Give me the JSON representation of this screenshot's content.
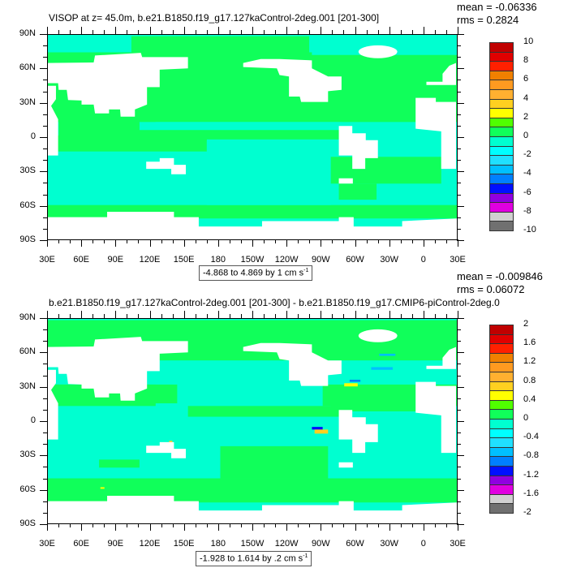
{
  "chart_data": [
    {
      "type": "heatmap",
      "title": "VISOP at z=  45.0m, b.e21.B1850.f19_g17.127kaControl-2deg.001 [201-300]",
      "mean_label": "mean = -0.06336",
      "rms_label": "rms = 0.2824",
      "lat_ticks": [
        "90N",
        "60N",
        "30N",
        "0",
        "30S",
        "60S",
        "90S"
      ],
      "lon_ticks": [
        "30E",
        "60E",
        "90E",
        "120E",
        "150E",
        "180",
        "150W",
        "120W",
        "90W",
        "60W",
        "30W",
        "0",
        "30E"
      ],
      "colorbar_labels": [
        "10",
        "8",
        "6",
        "4",
        "2",
        "0",
        "-2",
        "-4",
        "-6",
        "-8",
        "-10"
      ],
      "contour_info": "-4.868 to 4.869 by 1 cm s",
      "contour_unit_exp": "-1",
      "range": [
        -10,
        10
      ]
    },
    {
      "type": "heatmap",
      "title": "b.e21.B1850.f19_g17.127kaControl-2deg.001 [201-300] - b.e21.B1850.f19_g17.CMIP6-piControl-2deg.0",
      "mean_label": "mean = -0.009846",
      "rms_label": "rms = 0.06072",
      "lat_ticks": [
        "90N",
        "60N",
        "30N",
        "0",
        "30S",
        "60S",
        "90S"
      ],
      "lon_ticks": [
        "30E",
        "60E",
        "90E",
        "120E",
        "150E",
        "180",
        "150W",
        "120W",
        "90W",
        "60W",
        "30W",
        "0",
        "30E"
      ],
      "colorbar_labels": [
        "2",
        "1.6",
        "1.2",
        "0.8",
        "0.4",
        "0",
        "-0.4",
        "-0.8",
        "-1.2",
        "-1.6",
        "-2"
      ],
      "contour_info": "-1.928 to 1.614 by .2 cm s",
      "contour_unit_exp": "-1",
      "range": [
        -2,
        2
      ]
    }
  ],
  "colors": {
    "palette": [
      "#c00000",
      "#e00000",
      "#ff2000",
      "#f08000",
      "#ff9a20",
      "#ffb030",
      "#ffd020",
      "#ffff00",
      "#50ff00",
      "#10ff5a",
      "#00ffd0",
      "#00ffff",
      "#20e0ff",
      "#00c0ff",
      "#0080ff",
      "#0010ff",
      "#9000e0",
      "#e000e0",
      "#d0d0d0",
      "#707070"
    ],
    "land": "#ffffff"
  }
}
